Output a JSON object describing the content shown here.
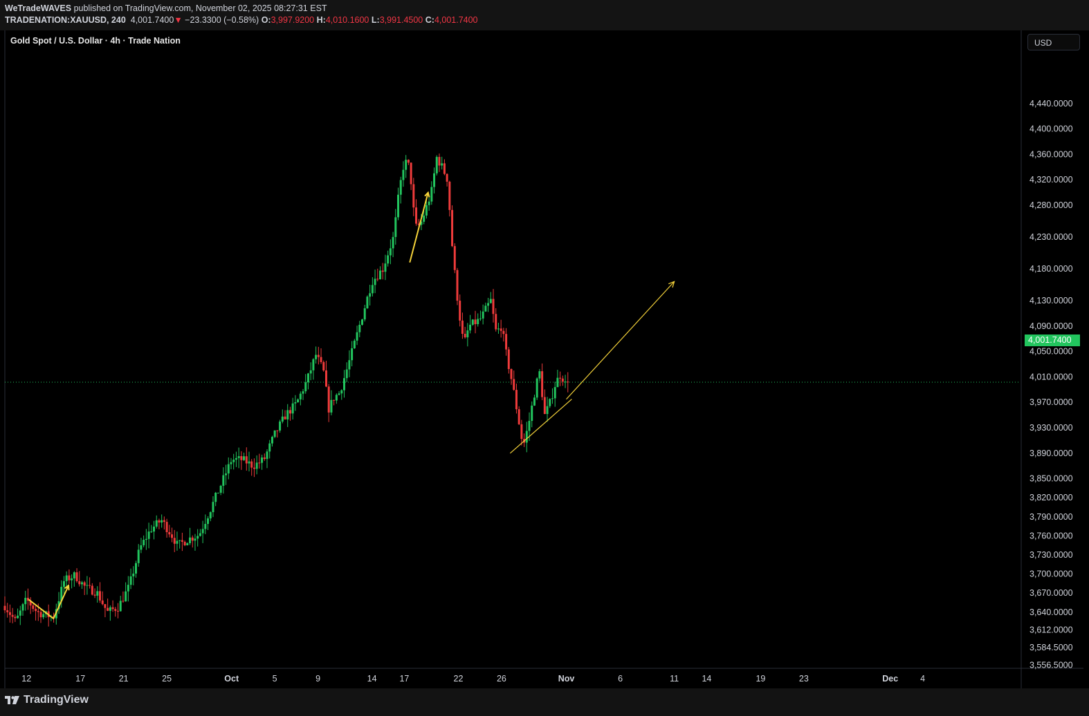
{
  "header": {
    "author": "WeTradeWAVES",
    "published_text": " published on TradingView.com, November 02, 2025 08:27:31 EST",
    "symbol": "TRADENATION:XAUUSD, 240",
    "last": "4,001.7400",
    "change_arrow": "▼",
    "change": "−23.3300 (−0.58%)",
    "o_label": "O:",
    "o_val": "3,997.9200",
    "h_label": "H:",
    "h_val": "4,010.1600",
    "l_label": "L:",
    "l_val": "3,991.4500",
    "c_label": "C:",
    "c_val": "4,001.7400"
  },
  "legend": {
    "title": "Gold Spot / U.S. Dollar · 4h · Trade Nation"
  },
  "currency_button": "USD",
  "last_price_tag": "4,001.7400",
  "footer": {
    "brand": "TradingView"
  },
  "colors": {
    "up": "#22c55e",
    "down": "#ef3b3b",
    "drawing": "#f5d33a",
    "price_line": "#22c55e",
    "background": "#000000",
    "grid_axis": "#2a2e39"
  },
  "chart_data": {
    "type": "candlestick",
    "title": "Gold Spot / U.S. Dollar · 4h · Trade Nation",
    "ylim": [
      3540,
      4470
    ],
    "y_ticks": [
      {
        "v": 4440,
        "label": "4,440.0000"
      },
      {
        "v": 4400,
        "label": "4,400.0000"
      },
      {
        "v": 4360,
        "label": "4,360.0000"
      },
      {
        "v": 4320,
        "label": "4,320.0000"
      },
      {
        "v": 4280,
        "label": "4,280.0000"
      },
      {
        "v": 4230,
        "label": "4,230.0000"
      },
      {
        "v": 4180,
        "label": "4,180.0000"
      },
      {
        "v": 4130,
        "label": "4,130.0000"
      },
      {
        "v": 4090,
        "label": "4,090.0000"
      },
      {
        "v": 4050,
        "label": "4,050.0000"
      },
      {
        "v": 4010,
        "label": "4,010.0000"
      },
      {
        "v": 3970,
        "label": "3,970.0000"
      },
      {
        "v": 3930,
        "label": "3,930.0000"
      },
      {
        "v": 3890,
        "label": "3,890.0000"
      },
      {
        "v": 3850,
        "label": "3,850.0000"
      },
      {
        "v": 3820,
        "label": "3,820.0000"
      },
      {
        "v": 3790,
        "label": "3,790.0000"
      },
      {
        "v": 3760,
        "label": "3,760.0000"
      },
      {
        "v": 3730,
        "label": "3,730.0000"
      },
      {
        "v": 3700,
        "label": "3,700.0000"
      },
      {
        "v": 3670,
        "label": "3,670.0000"
      },
      {
        "v": 3640,
        "label": "3,640.0000"
      },
      {
        "v": 3612,
        "label": "3,612.0000"
      },
      {
        "v": 3584.5,
        "label": "3,584.5000"
      },
      {
        "v": 3556.5,
        "label": "3,556.5000"
      }
    ],
    "x_ticks": [
      {
        "d": 12,
        "label": "12",
        "bold": false
      },
      {
        "d": 17,
        "label": "17",
        "bold": false
      },
      {
        "d": 21,
        "label": "21",
        "bold": false
      },
      {
        "d": 25,
        "label": "25",
        "bold": false
      },
      {
        "d": 31,
        "label": "Oct",
        "bold": true
      },
      {
        "d": 35,
        "label": "5",
        "bold": false
      },
      {
        "d": 39,
        "label": "9",
        "bold": false
      },
      {
        "d": 44,
        "label": "14",
        "bold": false
      },
      {
        "d": 47,
        "label": "17",
        "bold": false
      },
      {
        "d": 52,
        "label": "22",
        "bold": false
      },
      {
        "d": 56,
        "label": "26",
        "bold": false
      },
      {
        "d": 62,
        "label": "Nov",
        "bold": true
      },
      {
        "d": 67,
        "label": "6",
        "bold": false
      },
      {
        "d": 72,
        "label": "11",
        "bold": false
      },
      {
        "d": 75,
        "label": "14",
        "bold": false
      },
      {
        "d": 80,
        "label": "19",
        "bold": false
      },
      {
        "d": 84,
        "label": "23",
        "bold": false
      },
      {
        "d": 92,
        "label": "Dec",
        "bold": true
      },
      {
        "d": 95,
        "label": "4",
        "bold": false
      }
    ],
    "x_range_days": [
      10,
      104
    ],
    "last_price": 4001.74,
    "path_points": [
      [
        10.0,
        3650
      ],
      [
        11.0,
        3625
      ],
      [
        12.0,
        3660
      ],
      [
        13.0,
        3640
      ],
      [
        14.5,
        3632
      ],
      [
        15.5,
        3690
      ],
      [
        16.5,
        3698
      ],
      [
        17.5,
        3678
      ],
      [
        18.5,
        3672
      ],
      [
        19.5,
        3640
      ],
      [
        20.5,
        3648
      ],
      [
        21.5,
        3680
      ],
      [
        22.5,
        3740
      ],
      [
        23.5,
        3770
      ],
      [
        24.5,
        3785
      ],
      [
        25.5,
        3760
      ],
      [
        26.0,
        3745
      ],
      [
        27.0,
        3755
      ],
      [
        28.0,
        3762
      ],
      [
        29.0,
        3800
      ],
      [
        30.0,
        3840
      ],
      [
        31.0,
        3880
      ],
      [
        32.0,
        3880
      ],
      [
        33.0,
        3870
      ],
      [
        34.0,
        3880
      ],
      [
        35.0,
        3920
      ],
      [
        36.0,
        3950
      ],
      [
        37.0,
        3968
      ],
      [
        38.0,
        4005
      ],
      [
        38.8,
        4045
      ],
      [
        39.5,
        4020
      ],
      [
        40.0,
        3960
      ],
      [
        40.5,
        3978
      ],
      [
        41.0,
        3985
      ],
      [
        42.0,
        4040
      ],
      [
        43.0,
        4100
      ],
      [
        44.0,
        4160
      ],
      [
        45.0,
        4180
      ],
      [
        46.0,
        4230
      ],
      [
        46.5,
        4300
      ],
      [
        47.0,
        4350
      ],
      [
        47.5,
        4340
      ],
      [
        48.0,
        4245
      ],
      [
        48.5,
        4250
      ],
      [
        49.5,
        4300
      ],
      [
        50.0,
        4355
      ],
      [
        50.5,
        4340
      ],
      [
        51.0,
        4320
      ],
      [
        51.5,
        4200
      ],
      [
        52.0,
        4120
      ],
      [
        52.5,
        4060
      ],
      [
        53.0,
        4090
      ],
      [
        54.0,
        4100
      ],
      [
        55.0,
        4130
      ],
      [
        55.5,
        4080
      ],
      [
        56.0,
        4090
      ],
      [
        56.5,
        4040
      ],
      [
        57.0,
        4000
      ],
      [
        57.5,
        3950
      ],
      [
        58.0,
        3900
      ],
      [
        58.5,
        3935
      ],
      [
        59.0,
        3980
      ],
      [
        59.5,
        4020
      ],
      [
        60.0,
        3950
      ],
      [
        60.5,
        3970
      ],
      [
        61.0,
        4000
      ],
      [
        61.5,
        4015
      ],
      [
        62.0,
        3995
      ],
      [
        62.3,
        4001.74
      ]
    ],
    "drawings": [
      {
        "kind": "path",
        "points": [
          [
            12.2,
            3660
          ],
          [
            14.5,
            3630
          ],
          [
            15.9,
            3682
          ]
        ]
      },
      {
        "kind": "path",
        "points": [
          [
            47.5,
            4190
          ],
          [
            49.2,
            4300
          ]
        ]
      },
      {
        "kind": "trend",
        "points": [
          [
            56.8,
            3890
          ],
          [
            62.5,
            3975
          ]
        ]
      },
      {
        "kind": "arrow",
        "points": [
          [
            62.0,
            3975
          ],
          [
            72.0,
            4160
          ]
        ]
      }
    ]
  }
}
